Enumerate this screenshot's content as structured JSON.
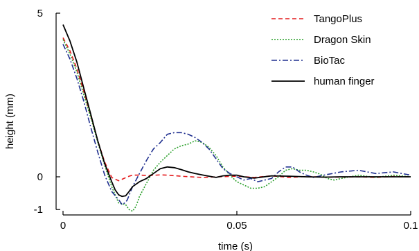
{
  "chart_data": {
    "type": "line",
    "xlabel": "time (s)",
    "ylabel": "height (mm)",
    "xlim": [
      0,
      0.1
    ],
    "ylim": [
      -1,
      5
    ],
    "xticks": [
      0,
      0.05,
      0.1
    ],
    "xtick_labels": [
      "0",
      "0.05",
      "0.1"
    ],
    "yticks": [
      -1,
      0,
      5
    ],
    "ytick_labels": [
      "-1",
      "0",
      "5"
    ],
    "grid": false,
    "legend_position": "top-right",
    "series": [
      {
        "name": "TangoPlus",
        "color": "#e41a1c",
        "dash": "dashed",
        "x": [
          0,
          0.002,
          0.004,
          0.006,
          0.008,
          0.01,
          0.012,
          0.014,
          0.016,
          0.0175,
          0.019,
          0.02,
          0.022,
          0.025,
          0.028,
          0.03,
          0.035,
          0.04,
          0.045,
          0.05,
          0.055,
          0.06,
          0.065,
          0.07,
          0.075,
          0.08,
          0.085,
          0.09,
          0.095,
          0.1
        ],
        "y": [
          4.25,
          3.85,
          3.3,
          2.6,
          1.85,
          1.1,
          0.45,
          -0.02,
          -0.12,
          -0.05,
          0.02,
          0.05,
          0.05,
          0.04,
          0.06,
          0.05,
          0.01,
          -0.02,
          0.0,
          0.02,
          -0.02,
          0.03,
          -0.02,
          0.01,
          -0.01,
          -0.01,
          0.0,
          -0.02,
          0.01,
          0.0
        ]
      },
      {
        "name": "Dragon Skin",
        "color": "#2ca02c",
        "dash": "dotted",
        "x": [
          0,
          0.002,
          0.004,
          0.006,
          0.008,
          0.01,
          0.012,
          0.014,
          0.016,
          0.018,
          0.019,
          0.02,
          0.021,
          0.022,
          0.024,
          0.026,
          0.028,
          0.03,
          0.032,
          0.034,
          0.036,
          0.038,
          0.04,
          0.042,
          0.044,
          0.046,
          0.048,
          0.05,
          0.052,
          0.054,
          0.056,
          0.058,
          0.06,
          0.062,
          0.064,
          0.066,
          0.068,
          0.07,
          0.072,
          0.074,
          0.076,
          0.078,
          0.08,
          0.085,
          0.09,
          0.095,
          0.1
        ],
        "y": [
          4.2,
          3.75,
          3.2,
          2.5,
          1.8,
          1.05,
          0.35,
          -0.3,
          -0.8,
          -0.85,
          -1.0,
          -1.05,
          -0.9,
          -0.6,
          -0.2,
          0.2,
          0.45,
          0.65,
          0.85,
          0.95,
          1.0,
          1.1,
          1.05,
          0.9,
          0.65,
          0.3,
          0.05,
          -0.15,
          -0.25,
          -0.35,
          -0.35,
          -0.3,
          -0.15,
          0.0,
          0.2,
          0.25,
          0.2,
          0.2,
          0.15,
          0.08,
          -0.05,
          -0.1,
          -0.05,
          0.05,
          -0.02,
          0.05,
          0.0
        ]
      },
      {
        "name": "BioTac",
        "color": "#1f2f8f",
        "dash": "dashdot",
        "x": [
          0,
          0.002,
          0.004,
          0.006,
          0.008,
          0.01,
          0.012,
          0.014,
          0.016,
          0.017,
          0.018,
          0.0185,
          0.02,
          0.022,
          0.024,
          0.026,
          0.028,
          0.03,
          0.032,
          0.034,
          0.036,
          0.038,
          0.04,
          0.042,
          0.044,
          0.046,
          0.048,
          0.05,
          0.052,
          0.054,
          0.056,
          0.058,
          0.06,
          0.062,
          0.064,
          0.066,
          0.068,
          0.07,
          0.072,
          0.075,
          0.08,
          0.085,
          0.09,
          0.095,
          0.1
        ],
        "y": [
          4.05,
          3.6,
          3.0,
          2.3,
          1.5,
          0.75,
          0.05,
          -0.45,
          -0.7,
          -0.85,
          -0.78,
          -0.7,
          -0.3,
          0.1,
          0.5,
          0.85,
          1.05,
          1.3,
          1.35,
          1.35,
          1.3,
          1.2,
          1.05,
          0.85,
          0.55,
          0.25,
          0.1,
          0.0,
          -0.1,
          -0.05,
          -0.15,
          -0.1,
          -0.05,
          0.15,
          0.3,
          0.3,
          0.15,
          0.05,
          -0.02,
          0.05,
          0.15,
          0.2,
          0.1,
          0.15,
          0.05
        ]
      },
      {
        "name": "human finger",
        "color": "#000000",
        "dash": "solid",
        "x": [
          0,
          0.002,
          0.004,
          0.006,
          0.008,
          0.01,
          0.012,
          0.014,
          0.015,
          0.016,
          0.017,
          0.018,
          0.019,
          0.02,
          0.022,
          0.024,
          0.026,
          0.028,
          0.03,
          0.032,
          0.034,
          0.036,
          0.038,
          0.04,
          0.042,
          0.044,
          0.046,
          0.048,
          0.05,
          0.052,
          0.055,
          0.06,
          0.065,
          0.07,
          0.075,
          0.08,
          0.085,
          0.09,
          0.095,
          0.1
        ],
        "y": [
          4.65,
          4.15,
          3.5,
          2.7,
          1.9,
          1.1,
          0.4,
          -0.15,
          -0.4,
          -0.55,
          -0.6,
          -0.58,
          -0.45,
          -0.3,
          -0.15,
          -0.05,
          0.1,
          0.25,
          0.3,
          0.28,
          0.22,
          0.15,
          0.1,
          0.06,
          0.02,
          -0.02,
          0.03,
          0.05,
          0.05,
          0.0,
          -0.04,
          0.03,
          0.02,
          0.0,
          -0.01,
          0.0,
          0.0,
          0.0,
          0.0,
          0.0
        ]
      }
    ]
  }
}
